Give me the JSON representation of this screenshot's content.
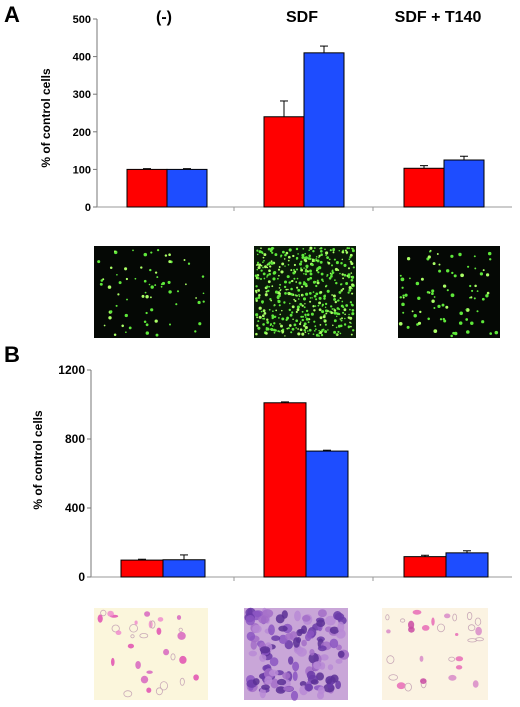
{
  "chart_data": [
    {
      "type": "bar",
      "panel_label": "A",
      "categories": [
        "(-)",
        "SDF",
        "SDF + T140"
      ],
      "ylabel": "% of control cells",
      "ylim": [
        0,
        500
      ],
      "yticks": [
        0,
        100,
        200,
        300,
        400,
        500
      ],
      "grid": false,
      "legend": "none",
      "series": [
        {
          "color": "#ff0000",
          "values": [
            100,
            240,
            103
          ],
          "errors": [
            2,
            42,
            7
          ]
        },
        {
          "color": "#1e4dff",
          "values": [
            100,
            410,
            125
          ],
          "errors": [
            2,
            18,
            10
          ]
        }
      ]
    },
    {
      "type": "bar",
      "panel_label": "B",
      "categories": [
        "(-)",
        "SDF",
        "SDF + T140"
      ],
      "ylabel": "% of control cells",
      "ylim": [
        0,
        1200
      ],
      "yticks": [
        0,
        400,
        800,
        1200
      ],
      "grid": false,
      "legend": "none",
      "series": [
        {
          "color": "#ff0000",
          "values": [
            98,
            1010,
            118
          ],
          "errors": [
            5,
            5,
            8
          ]
        },
        {
          "color": "#1e4dff",
          "values": [
            100,
            730,
            140
          ],
          "errors": [
            28,
            5,
            12
          ]
        }
      ]
    }
  ],
  "micrographs": {
    "panel_a": [
      "fluorescent-cells-control",
      "fluorescent-cells-sdf",
      "fluorescent-cells-sdf-t140"
    ],
    "panel_b": [
      "stained-cells-control",
      "stained-cells-sdf",
      "stained-cells-sdf-t140"
    ]
  }
}
